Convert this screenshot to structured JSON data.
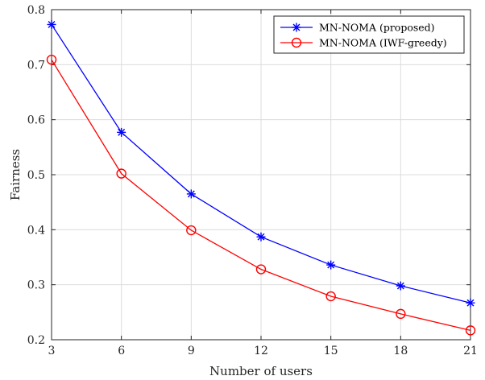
{
  "chart_data": {
    "type": "line",
    "xlabel": "Number of users",
    "ylabel": "Fairness",
    "x": [
      3,
      6,
      9,
      12,
      15,
      18,
      21
    ],
    "xticks": [
      3,
      6,
      9,
      12,
      15,
      18,
      21
    ],
    "xlim": [
      3,
      21
    ],
    "yticks": [
      0.2,
      0.3,
      0.4,
      0.5,
      0.6,
      0.7,
      0.8
    ],
    "ylim": [
      0.2,
      0.8
    ],
    "grid": true,
    "legend_position": "top-right",
    "series": [
      {
        "name": "MN-NOMA (proposed)",
        "color": "#0000ff",
        "marker": "asterisk",
        "values": [
          0.773,
          0.577,
          0.465,
          0.387,
          0.336,
          0.298,
          0.267
        ]
      },
      {
        "name": "MN-NOMA (IWF-greedy)",
        "color": "#ff0000",
        "marker": "circle",
        "values": [
          0.709,
          0.502,
          0.399,
          0.328,
          0.279,
          0.247,
          0.217
        ]
      }
    ]
  }
}
